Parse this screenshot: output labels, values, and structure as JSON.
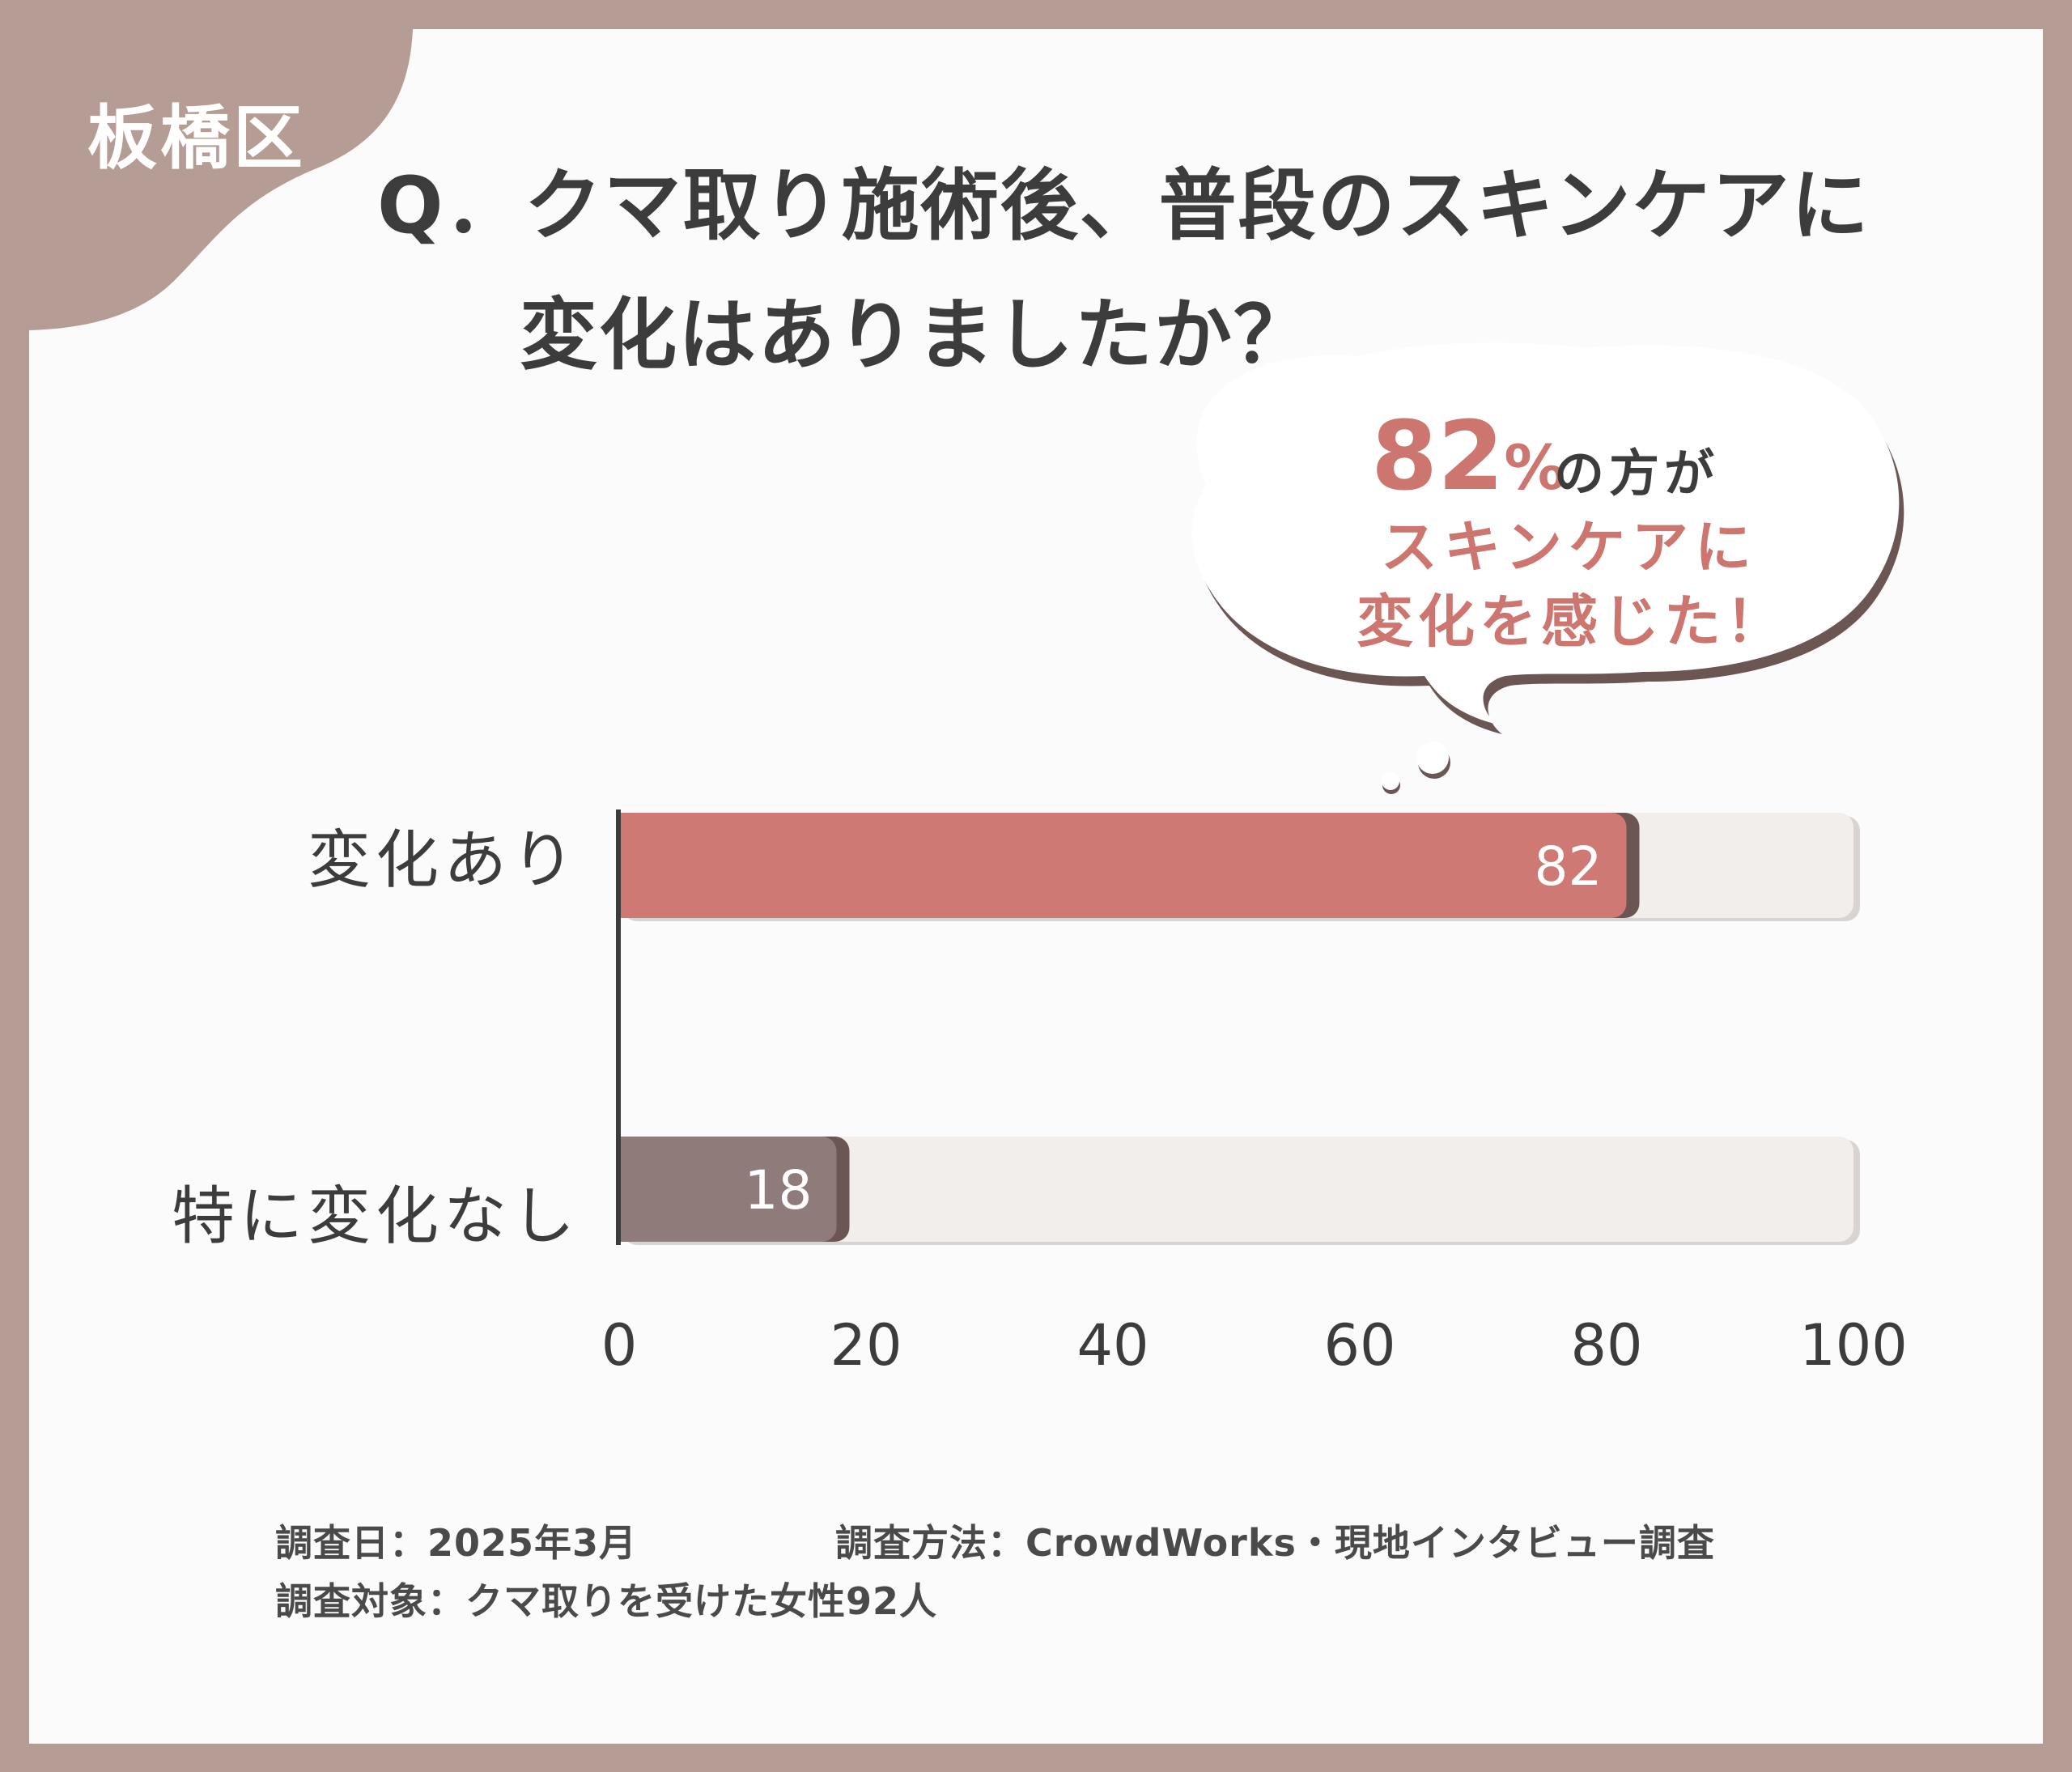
{
  "region_label": "板橋区",
  "question": {
    "line1": "Q．クマ取り施術後、普段のスキンケアに",
    "line2": "変化はありましたか？"
  },
  "callout": {
    "percent": "82",
    "percent_sign": "%",
    "suffix": "の方が",
    "line2": "スキンケアに",
    "line3": "変化を感じた！"
  },
  "colors": {
    "background_frame": "#b59c94",
    "card": "#fbfbfb",
    "bar_primary": "#cf7974",
    "bar_secondary": "#8f7b79",
    "bar_track": "#f2eeec",
    "accent_text": "#cd7670"
  },
  "chart_data": {
    "type": "bar",
    "orientation": "horizontal",
    "categories": [
      "変化あり",
      "特に変化なし"
    ],
    "values": [
      82,
      18
    ],
    "data_labels": [
      "82",
      "18"
    ],
    "xlim": [
      0,
      100
    ],
    "xticks": [
      "0",
      "20",
      "40",
      "60",
      "80",
      "100"
    ],
    "grid": false
  },
  "footer": {
    "date": "調査日：2025年3月",
    "method": "調査方法：CrowdWorks・現地インタビュー調査",
    "target": "調査対象：クマ取りを受けた女性92人"
  }
}
